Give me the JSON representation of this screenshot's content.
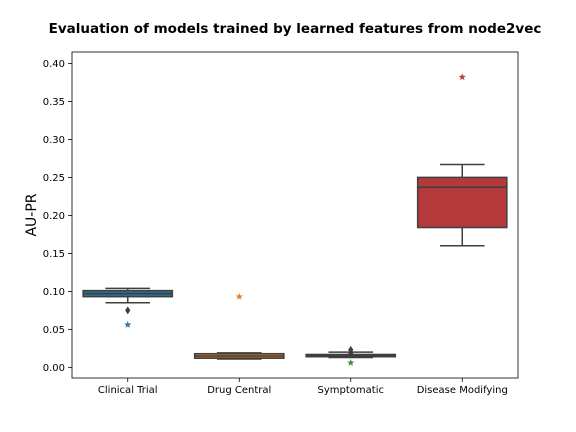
{
  "chart_data": {
    "type": "box",
    "title": "Evaluation of models trained by learned features from node2vec",
    "xlabel": "",
    "ylabel": "AU-PR",
    "ylim": [
      -0.014,
      0.415
    ],
    "yticks": [
      0.0,
      0.05,
      0.1,
      0.15,
      0.2,
      0.25,
      0.3,
      0.35,
      0.4
    ],
    "ytick_labels": [
      "0.00",
      "0.05",
      "0.10",
      "0.15",
      "0.20",
      "0.25",
      "0.30",
      "0.35",
      "0.40"
    ],
    "grid": false,
    "categories": [
      "Clinical Trial",
      "Drug Central",
      "Symptomatic",
      "Disease Modifying"
    ],
    "boxes": [
      {
        "category": "Clinical Trial",
        "color": "#3274a1",
        "q1": 0.093,
        "median": 0.097,
        "q3": 0.101,
        "whisker_low": 0.085,
        "whisker_high": 0.104,
        "outliers": [
          0.075
        ],
        "star": 0.056
      },
      {
        "category": "Drug Central",
        "color": "#e1812c",
        "q1": 0.012,
        "median": 0.015,
        "q3": 0.018,
        "whisker_low": 0.011,
        "whisker_high": 0.019,
        "outliers": [],
        "star": 0.093
      },
      {
        "category": "Symptomatic",
        "color": "#3a923a",
        "q1": 0.014,
        "median": 0.016,
        "q3": 0.017,
        "whisker_low": 0.013,
        "whisker_high": 0.02,
        "outliers": [
          0.019,
          0.023
        ],
        "star": 0.006
      },
      {
        "category": "Disease Modifying",
        "color": "#c03d3e",
        "q1": 0.184,
        "median": 0.237,
        "q3": 0.25,
        "whisker_low": 0.16,
        "whisker_high": 0.267,
        "outliers": [],
        "star": 0.382
      }
    ]
  }
}
